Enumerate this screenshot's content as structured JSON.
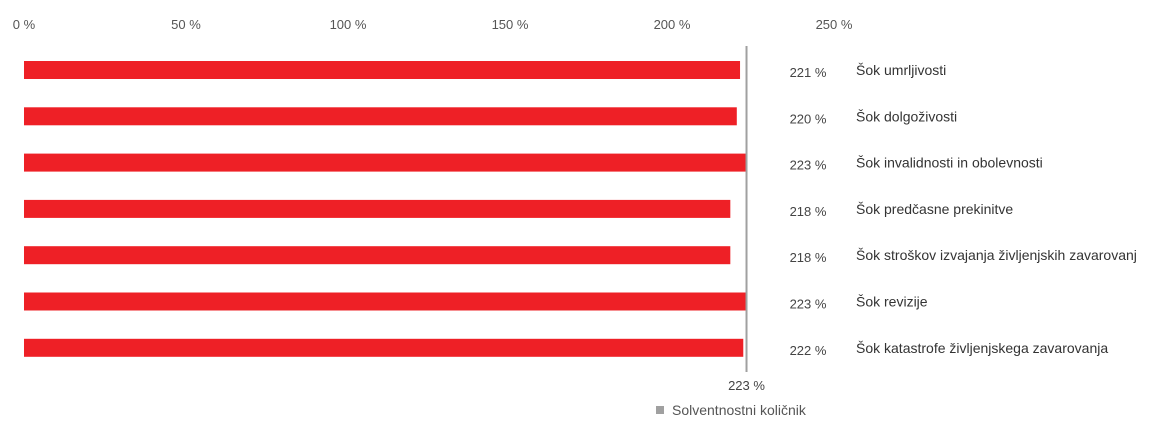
{
  "chart_data": {
    "type": "bar",
    "orientation": "horizontal",
    "categories": [
      "Šok umrljivosti",
      "Šok dolgoživosti",
      "Šok invalidnosti in obolevnosti",
      "Šok predčasne prekinitve",
      "Šok stroškov izvajanja življenjskih zavarovanj",
      "Šok revizije",
      "Šok katastrofe življenjskega zavarovanja"
    ],
    "values": [
      221,
      220,
      223,
      218,
      218,
      223,
      222
    ],
    "value_labels": [
      "221 %",
      "220 %",
      "223 %",
      "218 %",
      "218 %",
      "223 %",
      "222 %"
    ],
    "xlim": [
      0,
      250
    ],
    "x_ticks": [
      0,
      50,
      100,
      150,
      200,
      250
    ],
    "x_tick_labels": [
      "0 %",
      "50 %",
      "100 %",
      "150 %",
      "200 %",
      "250 %"
    ],
    "x_axis_position": "top",
    "reference_line": {
      "value": 223,
      "label": "223 %"
    },
    "legend": {
      "label": "Solventnostni količnik",
      "placement": "bottom"
    },
    "grid": false,
    "colors": {
      "bar": "#ee2026",
      "reference_line": "#a0a0a0",
      "legend_swatch": "#a0a0a0"
    }
  }
}
